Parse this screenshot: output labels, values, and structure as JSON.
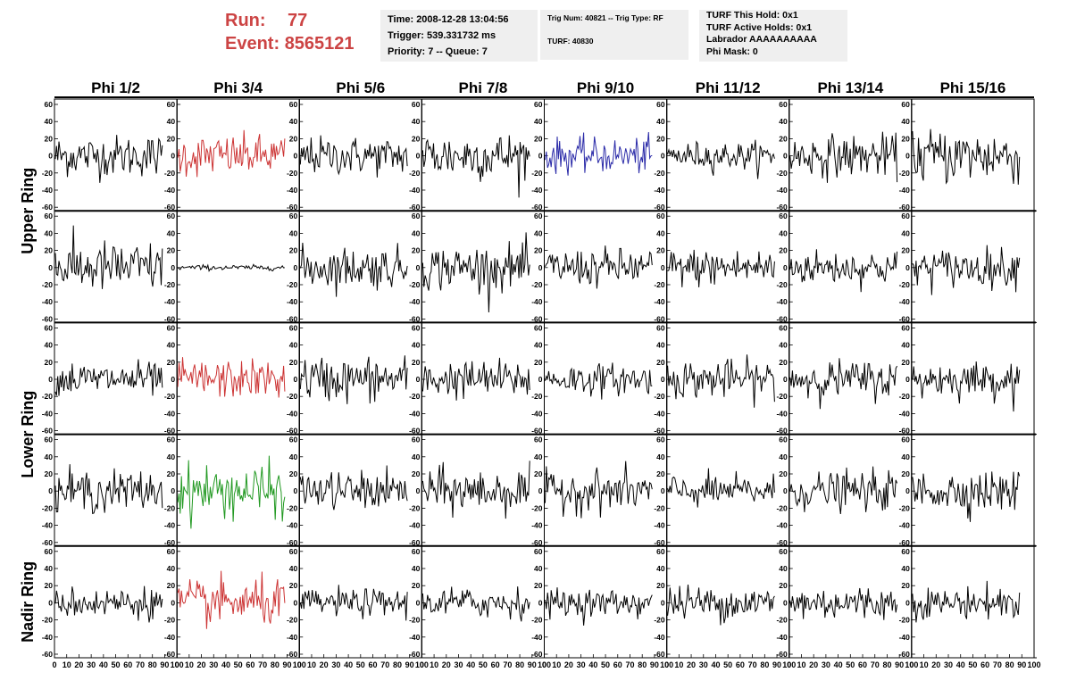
{
  "header": {
    "run_label": "Run:",
    "run_value": "77",
    "event_label": "Event:",
    "event_value": "8565121",
    "time_line": "Time: 2008-12-28 13:04:56",
    "trigger_line": "Trigger: 539.331732 ms",
    "priority_line": "Priority: 7 -- Queue: 7",
    "trig_line": "Trig Num: 40821 -- Trig Type: RF",
    "turf_line": "TURF: 40830",
    "turf_hold_line": "TURF This Hold: 0x1",
    "turf_active_line": "TURF Active Holds: 0x1",
    "labrador_line": "Labrador AAAAAAAAAA",
    "phi_mask_line": "Phi Mask: 0"
  },
  "chart_data": {
    "type": "line",
    "columns": [
      "Phi 1/2",
      "Phi 3/4",
      "Phi 5/6",
      "Phi 7/8",
      "Phi 9/10",
      "Phi 11/12",
      "Phi 13/14",
      "Phi 15/16"
    ],
    "rows": [
      "Upper Ring",
      "Lower Ring",
      "Nadir Ring"
    ],
    "sub_rows": 5,
    "x_range": [
      0,
      100
    ],
    "y_range": [
      -60,
      60
    ],
    "y_ticks": [
      "60",
      "40",
      "20",
      "0",
      "-20",
      "-40",
      "-60"
    ],
    "x_ticks": [
      "0",
      "10",
      "20",
      "30",
      "40",
      "50",
      "60",
      "70",
      "80",
      "90",
      "100"
    ],
    "samples": 90,
    "amplitudes": [
      [
        12,
        12,
        11,
        14,
        10,
        8,
        12,
        16
      ],
      [
        15,
        1.5,
        12,
        13,
        11,
        11,
        10,
        11
      ],
      [
        10,
        11,
        13,
        11,
        9,
        11,
        11,
        10
      ],
      [
        12,
        15,
        11,
        13,
        12,
        9,
        11,
        12
      ],
      [
        9,
        13,
        8,
        9,
        8,
        10,
        10,
        9
      ]
    ],
    "colors": {
      "default": "#000000",
      "red": "#cc3333",
      "blue": "#2a2aa8",
      "green": "#229922"
    },
    "highlight": {
      "0-1": "red",
      "0-4": "blue",
      "2-1": "red",
      "3-1": "green",
      "4-1": "red"
    }
  }
}
